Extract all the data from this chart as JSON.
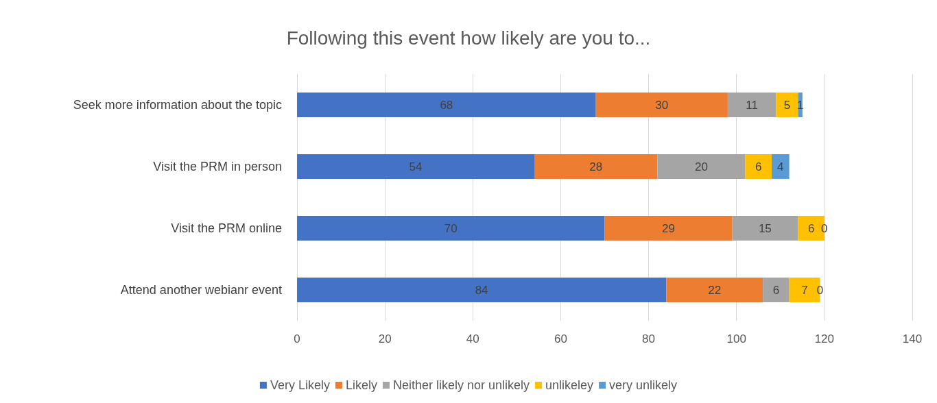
{
  "chart_data": {
    "type": "bar",
    "orientation": "horizontal",
    "stacked": true,
    "title": "Following this event how likely are you to...",
    "categories": [
      "Seek more information about the topic",
      "Visit the PRM in person",
      "Visit the PRM online",
      "Attend another webianr event"
    ],
    "series": [
      {
        "name": "Very Likely",
        "color": "#4472c4",
        "values": [
          68,
          54,
          70,
          84
        ]
      },
      {
        "name": "Likely",
        "color": "#ed7d31",
        "values": [
          30,
          28,
          29,
          22
        ]
      },
      {
        "name": "Neither likely nor unlikely",
        "color": "#a5a5a5",
        "values": [
          11,
          20,
          15,
          6
        ]
      },
      {
        "name": "unlikeley",
        "color": "#ffc000",
        "values": [
          5,
          6,
          6,
          7
        ]
      },
      {
        "name": "very unlikely",
        "color": "#5b9bd5",
        "values": [
          1,
          4,
          0,
          0
        ]
      }
    ],
    "xlim": [
      0,
      140
    ],
    "xticks": [
      0,
      20,
      40,
      60,
      80,
      100,
      120,
      140
    ],
    "grid": "x",
    "legend": "bottom",
    "data_labels": true
  }
}
